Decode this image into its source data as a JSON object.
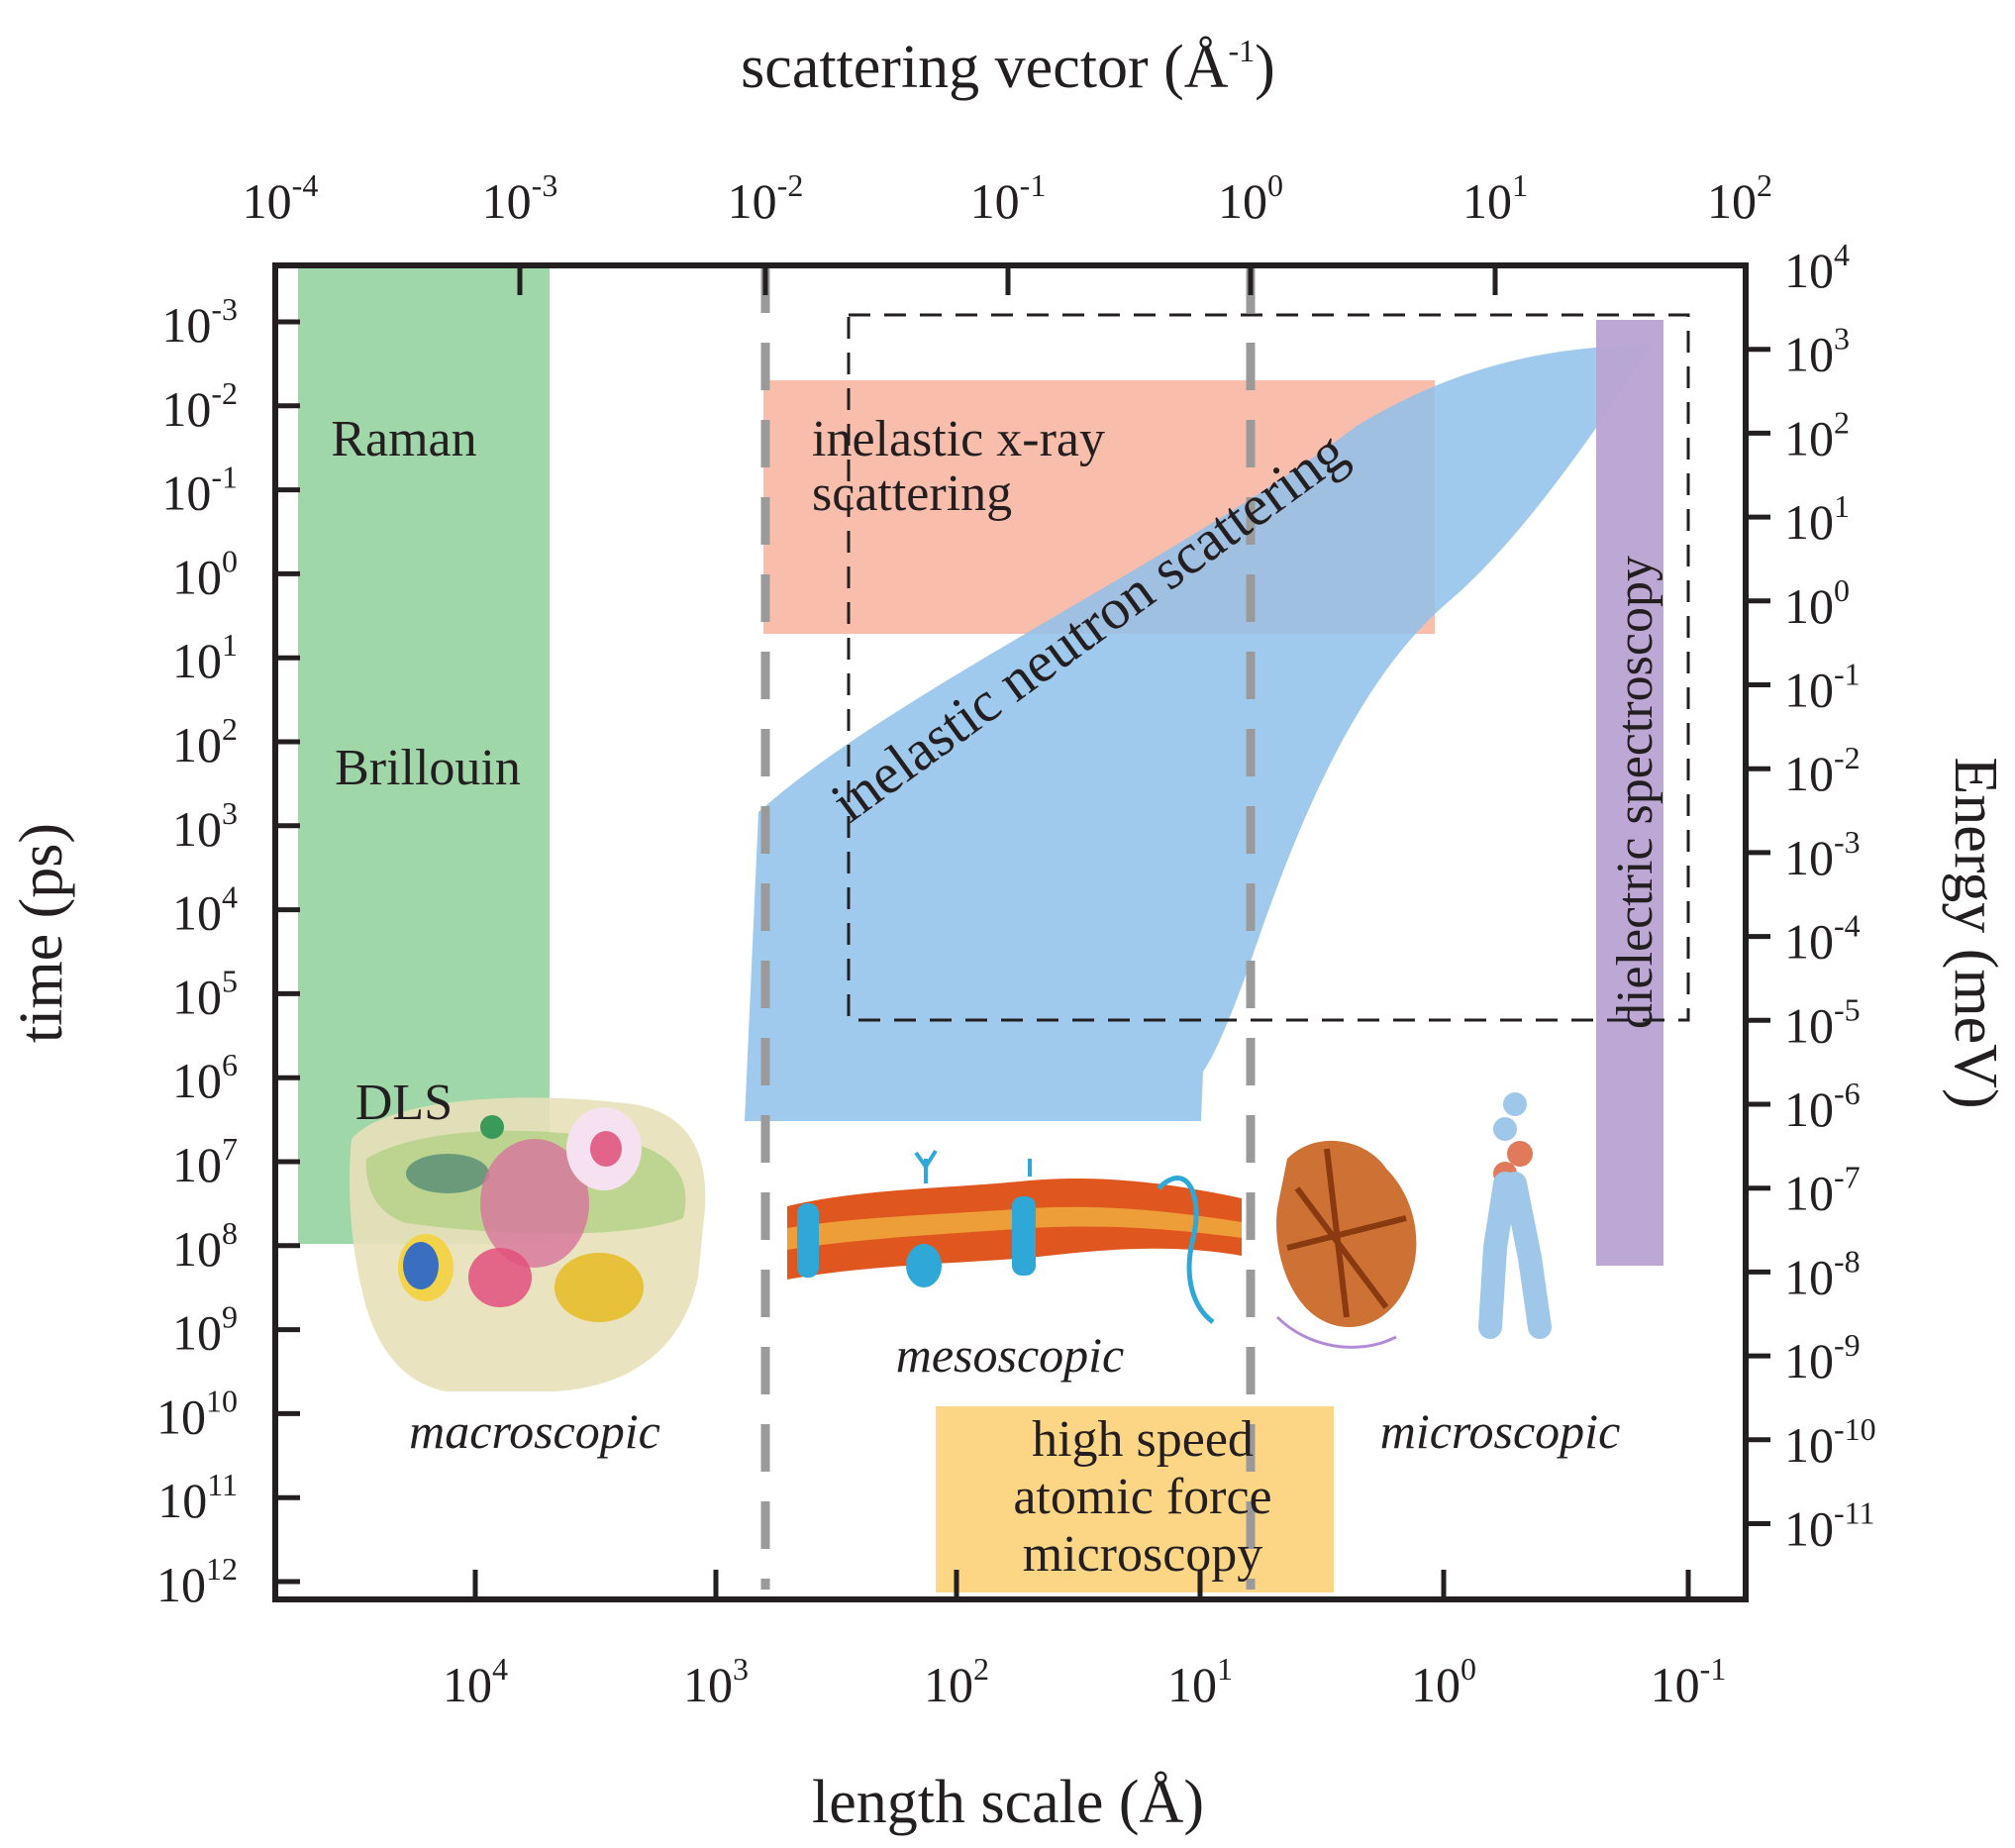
{
  "axes": {
    "top_title": "scattering vector (Å",
    "top_title_sup": "-1",
    "top_title_end": ")",
    "bottom_title": "length scale (Å)",
    "left_title": "time (ps)",
    "right_title": "Energy (meV)",
    "top_ticks": [
      {
        "base": "10",
        "exp": "-4"
      },
      {
        "base": "10",
        "exp": "-3"
      },
      {
        "base": "10",
        "exp": "-2"
      },
      {
        "base": "10",
        "exp": "-1"
      },
      {
        "base": "10",
        "exp": "0"
      },
      {
        "base": "10",
        "exp": "1"
      },
      {
        "base": "10",
        "exp": "2"
      }
    ],
    "bottom_ticks": [
      {
        "base": "10",
        "exp": "4"
      },
      {
        "base": "10",
        "exp": "3"
      },
      {
        "base": "10",
        "exp": "2"
      },
      {
        "base": "10",
        "exp": "1"
      },
      {
        "base": "10",
        "exp": "0"
      },
      {
        "base": "10",
        "exp": "-1"
      }
    ],
    "left_ticks": [
      {
        "base": "10",
        "exp": "-3"
      },
      {
        "base": "10",
        "exp": "-2"
      },
      {
        "base": "10",
        "exp": "-1"
      },
      {
        "base": "10",
        "exp": "0"
      },
      {
        "base": "10",
        "exp": "1"
      },
      {
        "base": "10",
        "exp": "2"
      },
      {
        "base": "10",
        "exp": "3"
      },
      {
        "base": "10",
        "exp": "4"
      },
      {
        "base": "10",
        "exp": "5"
      },
      {
        "base": "10",
        "exp": "6"
      },
      {
        "base": "10",
        "exp": "7"
      },
      {
        "base": "10",
        "exp": "8"
      },
      {
        "base": "10",
        "exp": "9"
      },
      {
        "base": "10",
        "exp": "10"
      },
      {
        "base": "10",
        "exp": "11"
      },
      {
        "base": "10",
        "exp": "12"
      }
    ],
    "right_ticks": [
      {
        "base": "10",
        "exp": "4"
      },
      {
        "base": "10",
        "exp": "3"
      },
      {
        "base": "10",
        "exp": "2"
      },
      {
        "base": "10",
        "exp": "1"
      },
      {
        "base": "10",
        "exp": "0"
      },
      {
        "base": "10",
        "exp": "-1"
      },
      {
        "base": "10",
        "exp": "-2"
      },
      {
        "base": "10",
        "exp": "-3"
      },
      {
        "base": "10",
        "exp": "-4"
      },
      {
        "base": "10",
        "exp": "-5"
      },
      {
        "base": "10",
        "exp": "-6"
      },
      {
        "base": "10",
        "exp": "-7"
      },
      {
        "base": "10",
        "exp": "-8"
      },
      {
        "base": "10",
        "exp": "-9"
      },
      {
        "base": "10",
        "exp": "-10"
      },
      {
        "base": "10",
        "exp": "-11"
      }
    ]
  },
  "techniques": {
    "raman": "Raman",
    "brillouin": "Brillouin",
    "dls": "DLS",
    "ixs_line1": "inelastic x-ray",
    "ixs_line2": "scattering",
    "ins": "inelastic neutron scattering",
    "dielectric": "dielectric spectroscopy",
    "afm_line1": "high speed",
    "afm_line2": "atomic force",
    "afm_line3": "microscopy"
  },
  "scales": {
    "macro": "macroscopic",
    "meso": "mesoscopic",
    "micro": "microscopic"
  },
  "colors": {
    "green": "#8fd09a",
    "salmon": "#f7b6a1",
    "blue": "#8fc1ea",
    "purple": "#b9a3d3",
    "yellow": "#fdd47e",
    "axis": "#231f20",
    "dash_grey": "#9a9a9a"
  }
}
